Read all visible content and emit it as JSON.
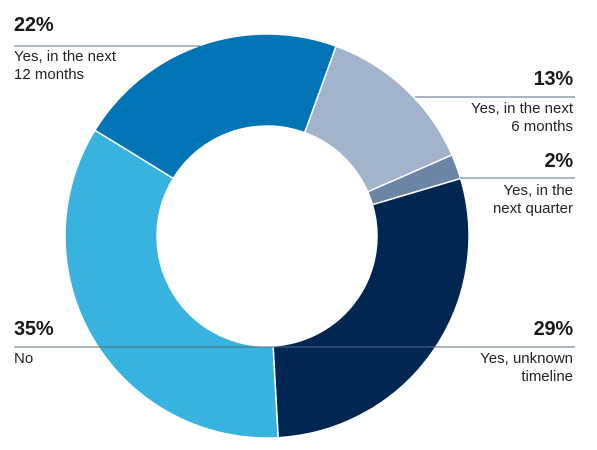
{
  "chart_data": {
    "type": "pie",
    "donut": true,
    "slices": [
      {
        "label": "Yes, in the next 6 months",
        "value": 13,
        "display": "13%",
        "text": "Yes, in the next\n6 months",
        "color": "#A2B4CB"
      },
      {
        "label": "Yes, in the next quarter",
        "value": 2,
        "display": "2%",
        "text": "Yes, in the\nnext quarter",
        "color": "#6C84A6"
      },
      {
        "label": "Yes, unknown timeline",
        "value": 29,
        "display": "29%",
        "text": "Yes, unknown\ntimeline",
        "color": "#002651"
      },
      {
        "label": "No",
        "value": 35,
        "display": "35%",
        "text": "No",
        "color": "#38B3E0"
      },
      {
        "label": "Yes, in the next 12 months",
        "value": 22,
        "display": "22%",
        "text": "Yes, in the next\n12 months",
        "color": "#0074B4"
      }
    ]
  }
}
